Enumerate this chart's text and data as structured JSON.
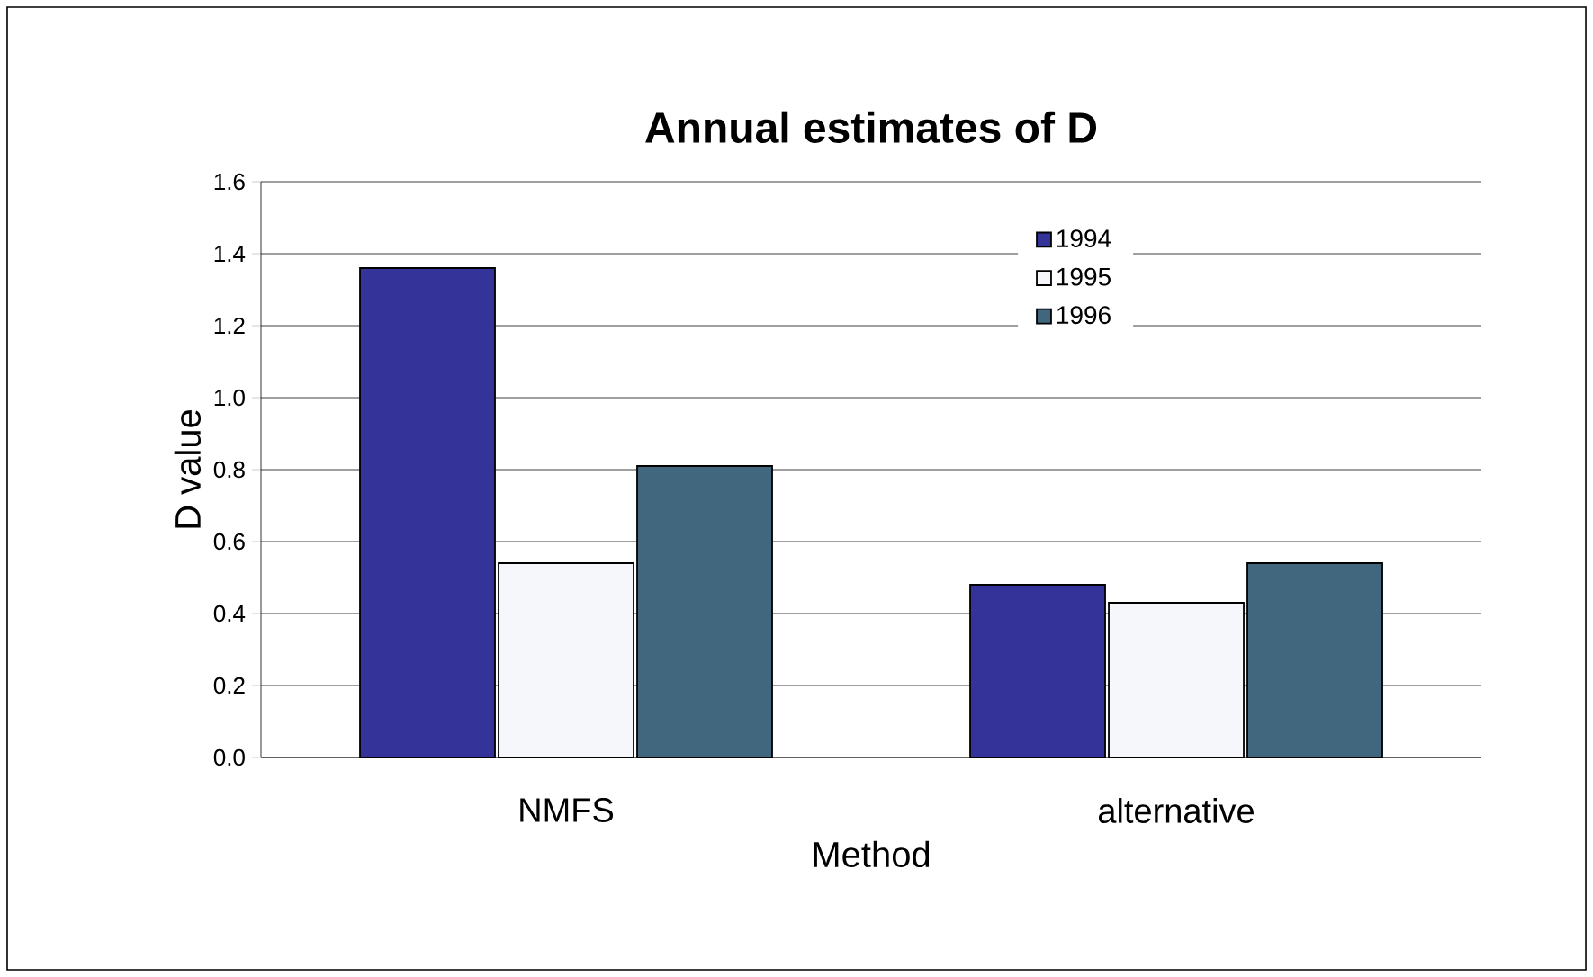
{
  "chart_data": {
    "type": "bar",
    "title": "Annual estimates of D",
    "xlabel": "Method",
    "ylabel": "D value",
    "categories": [
      "NMFS",
      "alternative"
    ],
    "series": [
      {
        "name": "1994",
        "color": "#333399",
        "values": [
          1.36,
          0.48
        ]
      },
      {
        "name": "1995",
        "color": "#f5f7fa",
        "values": [
          0.54,
          0.43
        ]
      },
      {
        "name": "1996",
        "color": "#41677f",
        "values": [
          0.81,
          0.54
        ]
      }
    ],
    "ylim": [
      0,
      1.6
    ],
    "yticks": [
      {
        "value": 0,
        "label": "0.0"
      },
      0.2,
      0.4,
      0.6,
      0.8,
      {
        "value": 1,
        "label": "1.0"
      },
      1.2,
      1.4,
      1.6
    ],
    "grid": "y",
    "legend": "top right"
  }
}
